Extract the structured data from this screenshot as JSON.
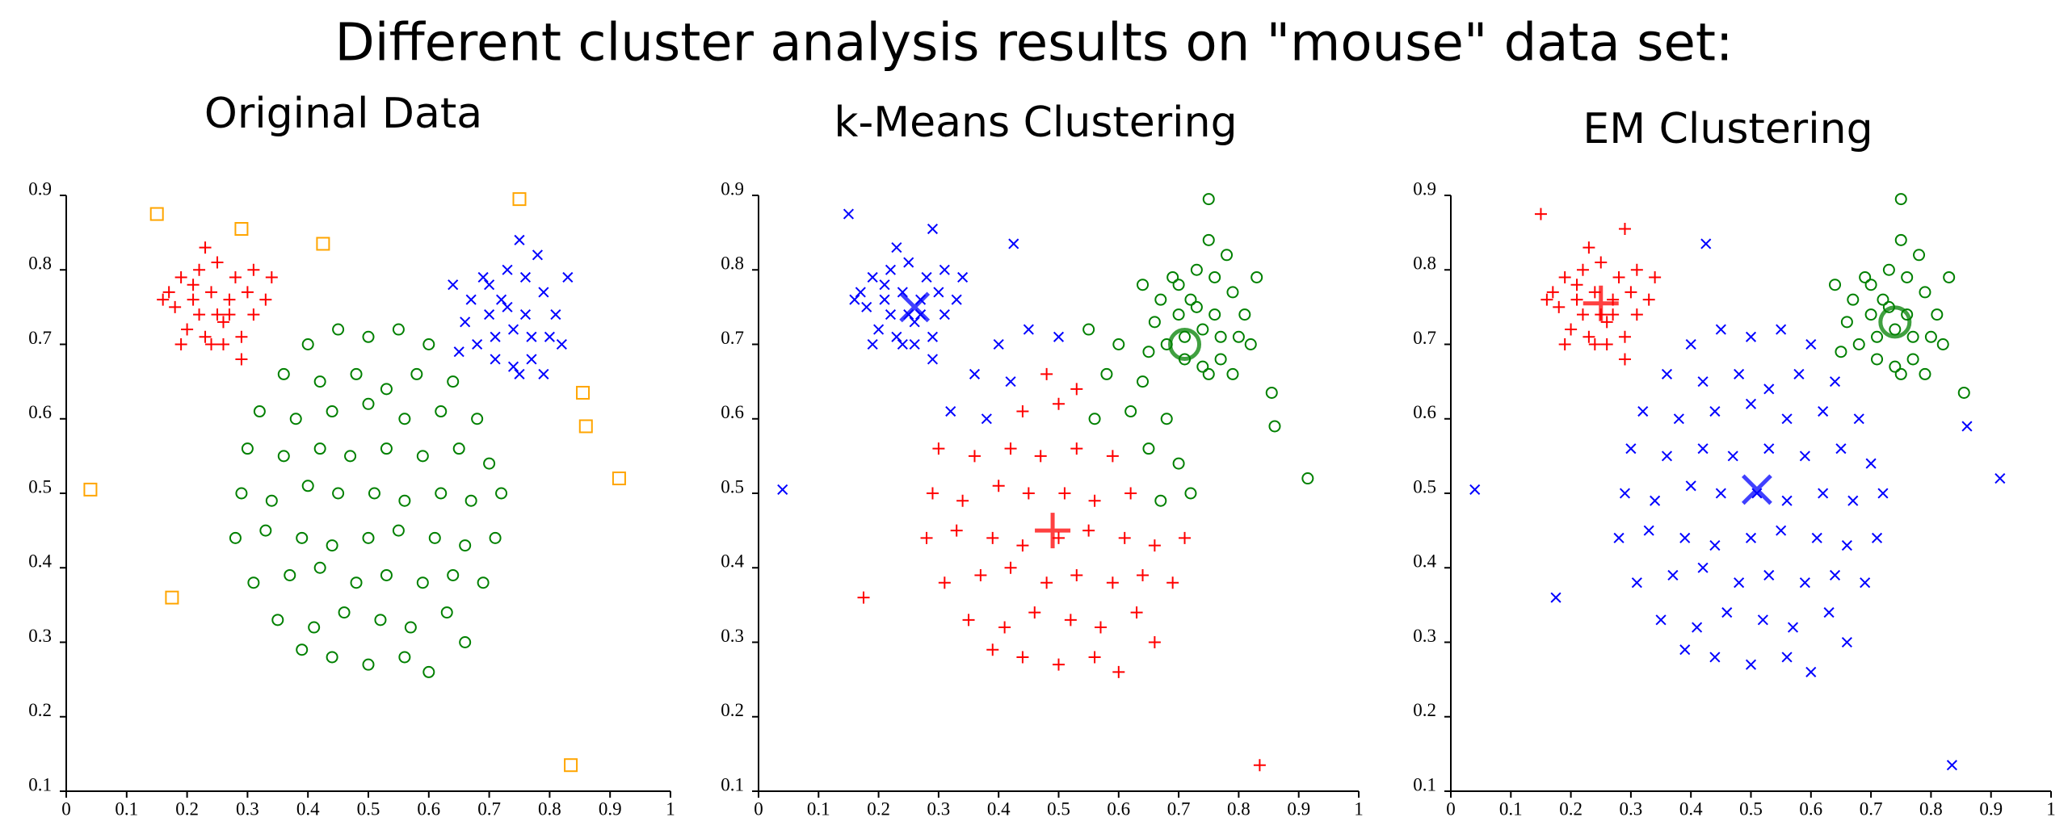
{
  "title": "Different cluster analysis results on \"mouse\" data set:",
  "chart_data": [
    {
      "type": "scatter",
      "title": "Original Data",
      "xlim": [
        0,
        1
      ],
      "ylim": [
        0.1,
        0.9
      ],
      "xticks": [
        0,
        0.1,
        0.2,
        0.3,
        0.4,
        0.5,
        0.6,
        0.7,
        0.8,
        0.9,
        1
      ],
      "yticks": [
        0.1,
        0.2,
        0.3,
        0.4,
        0.5,
        0.6,
        0.7,
        0.8,
        0.9
      ],
      "series": [
        {
          "color": "#ff0000",
          "marker": "+",
          "x": [
            0.19,
            0.22,
            0.25,
            0.28,
            0.3,
            0.31,
            0.29,
            0.26,
            0.23,
            0.2,
            0.18,
            0.21,
            0.24,
            0.27,
            0.25,
            0.22,
            0.17,
            0.33,
            0.26,
            0.29,
            0.19,
            0.23,
            0.31,
            0.16,
            0.27,
            0.24,
            0.21,
            0.34
          ],
          "values": [
            0.79,
            0.8,
            0.81,
            0.79,
            0.77,
            0.74,
            0.71,
            0.7,
            0.71,
            0.72,
            0.75,
            0.76,
            0.77,
            0.76,
            0.74,
            0.74,
            0.77,
            0.76,
            0.73,
            0.68,
            0.7,
            0.83,
            0.8,
            0.76,
            0.74,
            0.7,
            0.78,
            0.79
          ]
        },
        {
          "color": "#0000ff",
          "marker": "x",
          "x": [
            0.67,
            0.7,
            0.73,
            0.76,
            0.79,
            0.81,
            0.8,
            0.77,
            0.74,
            0.71,
            0.68,
            0.66,
            0.7,
            0.73,
            0.76,
            0.74,
            0.71,
            0.78,
            0.83,
            0.65,
            0.75,
            0.79,
            0.72,
            0.82,
            0.69,
            0.77,
            0.75,
            0.64
          ],
          "values": [
            0.76,
            0.78,
            0.8,
            0.79,
            0.77,
            0.74,
            0.71,
            0.68,
            0.67,
            0.68,
            0.7,
            0.73,
            0.74,
            0.75,
            0.74,
            0.72,
            0.71,
            0.82,
            0.79,
            0.69,
            0.66,
            0.66,
            0.76,
            0.7,
            0.79,
            0.71,
            0.84,
            0.78
          ]
        },
        {
          "color": "#008000",
          "marker": "o",
          "x": [
            0.4,
            0.45,
            0.5,
            0.55,
            0.6,
            0.36,
            0.42,
            0.48,
            0.53,
            0.58,
            0.64,
            0.32,
            0.38,
            0.44,
            0.5,
            0.56,
            0.62,
            0.68,
            0.3,
            0.36,
            0.42,
            0.47,
            0.53,
            0.59,
            0.65,
            0.7,
            0.29,
            0.34,
            0.4,
            0.45,
            0.51,
            0.56,
            0.62,
            0.67,
            0.72,
            0.28,
            0.33,
            0.39,
            0.44,
            0.5,
            0.55,
            0.61,
            0.66,
            0.71,
            0.31,
            0.37,
            0.42,
            0.48,
            0.53,
            0.59,
            0.64,
            0.69,
            0.35,
            0.41,
            0.46,
            0.52,
            0.57,
            0.63,
            0.44,
            0.5,
            0.56,
            0.6,
            0.39,
            0.66
          ],
          "values": [
            0.7,
            0.72,
            0.71,
            0.72,
            0.7,
            0.66,
            0.65,
            0.66,
            0.64,
            0.66,
            0.65,
            0.61,
            0.6,
            0.61,
            0.62,
            0.6,
            0.61,
            0.6,
            0.56,
            0.55,
            0.56,
            0.55,
            0.56,
            0.55,
            0.56,
            0.54,
            0.5,
            0.49,
            0.51,
            0.5,
            0.5,
            0.49,
            0.5,
            0.49,
            0.5,
            0.44,
            0.45,
            0.44,
            0.43,
            0.44,
            0.45,
            0.44,
            0.43,
            0.44,
            0.38,
            0.39,
            0.4,
            0.38,
            0.39,
            0.38,
            0.39,
            0.38,
            0.33,
            0.32,
            0.34,
            0.33,
            0.32,
            0.34,
            0.28,
            0.27,
            0.28,
            0.26,
            0.29,
            0.3
          ]
        },
        {
          "color": "#ffa500",
          "marker": "square",
          "x": [
            0.04,
            0.15,
            0.175,
            0.29,
            0.425,
            0.75,
            0.855,
            0.86,
            0.915,
            0.835
          ],
          "values": [
            0.505,
            0.875,
            0.36,
            0.855,
            0.835,
            0.895,
            0.635,
            0.59,
            0.52,
            0.135
          ]
        }
      ]
    },
    {
      "type": "scatter",
      "title": "k-Means Clustering",
      "xlim": [
        0,
        1
      ],
      "ylim": [
        0.1,
        0.9
      ],
      "xticks": [
        0,
        0.1,
        0.2,
        0.3,
        0.4,
        0.5,
        0.6,
        0.7,
        0.8,
        0.9,
        1
      ],
      "yticks": [
        0.1,
        0.2,
        0.3,
        0.4,
        0.5,
        0.6,
        0.7,
        0.8,
        0.9
      ],
      "series": [
        {
          "color": "#0000ff",
          "marker": "x",
          "center": {
            "x": 0.26,
            "y": 0.75
          },
          "x": [
            0.19,
            0.22,
            0.25,
            0.28,
            0.3,
            0.31,
            0.29,
            0.26,
            0.23,
            0.2,
            0.18,
            0.21,
            0.24,
            0.27,
            0.25,
            0.22,
            0.17,
            0.33,
            0.26,
            0.29,
            0.19,
            0.23,
            0.31,
            0.16,
            0.27,
            0.24,
            0.21,
            0.34,
            0.4,
            0.45,
            0.5,
            0.36,
            0.42,
            0.32,
            0.38,
            0.04,
            0.15,
            0.29,
            0.425
          ],
          "values": [
            0.79,
            0.8,
            0.81,
            0.79,
            0.77,
            0.74,
            0.71,
            0.7,
            0.71,
            0.72,
            0.75,
            0.76,
            0.77,
            0.76,
            0.74,
            0.74,
            0.77,
            0.76,
            0.73,
            0.68,
            0.7,
            0.83,
            0.8,
            0.76,
            0.74,
            0.7,
            0.78,
            0.79,
            0.7,
            0.72,
            0.71,
            0.66,
            0.65,
            0.61,
            0.6,
            0.505,
            0.875,
            0.855,
            0.835
          ]
        },
        {
          "color": "#008000",
          "marker": "o",
          "center": {
            "x": 0.71,
            "y": 0.7
          },
          "x": [
            0.67,
            0.7,
            0.73,
            0.76,
            0.79,
            0.81,
            0.8,
            0.77,
            0.74,
            0.71,
            0.68,
            0.66,
            0.7,
            0.73,
            0.76,
            0.74,
            0.71,
            0.78,
            0.83,
            0.65,
            0.75,
            0.79,
            0.72,
            0.82,
            0.69,
            0.77,
            0.75,
            0.64,
            0.55,
            0.6,
            0.58,
            0.64,
            0.56,
            0.62,
            0.68,
            0.65,
            0.7,
            0.72,
            0.67,
            0.75,
            0.855,
            0.86,
            0.915
          ],
          "values": [
            0.76,
            0.78,
            0.8,
            0.79,
            0.77,
            0.74,
            0.71,
            0.68,
            0.67,
            0.68,
            0.7,
            0.73,
            0.74,
            0.75,
            0.74,
            0.72,
            0.71,
            0.82,
            0.79,
            0.69,
            0.66,
            0.66,
            0.76,
            0.7,
            0.79,
            0.71,
            0.84,
            0.78,
            0.72,
            0.7,
            0.66,
            0.65,
            0.6,
            0.61,
            0.6,
            0.56,
            0.54,
            0.5,
            0.49,
            0.895,
            0.635,
            0.59,
            0.52
          ]
        },
        {
          "color": "#ff0000",
          "marker": "+",
          "center": {
            "x": 0.49,
            "y": 0.45
          },
          "x": [
            0.48,
            0.53,
            0.44,
            0.5,
            0.3,
            0.36,
            0.42,
            0.47,
            0.53,
            0.59,
            0.29,
            0.34,
            0.4,
            0.45,
            0.51,
            0.56,
            0.62,
            0.28,
            0.33,
            0.39,
            0.44,
            0.5,
            0.55,
            0.61,
            0.66,
            0.71,
            0.31,
            0.37,
            0.42,
            0.48,
            0.53,
            0.59,
            0.64,
            0.69,
            0.35,
            0.41,
            0.46,
            0.52,
            0.57,
            0.63,
            0.44,
            0.5,
            0.56,
            0.6,
            0.39,
            0.66,
            0.175,
            0.835
          ],
          "values": [
            0.66,
            0.64,
            0.61,
            0.62,
            0.56,
            0.55,
            0.56,
            0.55,
            0.56,
            0.55,
            0.5,
            0.49,
            0.51,
            0.5,
            0.5,
            0.49,
            0.5,
            0.44,
            0.45,
            0.44,
            0.43,
            0.44,
            0.45,
            0.44,
            0.43,
            0.44,
            0.38,
            0.39,
            0.4,
            0.38,
            0.39,
            0.38,
            0.39,
            0.38,
            0.33,
            0.32,
            0.34,
            0.33,
            0.32,
            0.34,
            0.28,
            0.27,
            0.28,
            0.26,
            0.29,
            0.3,
            0.36,
            0.135
          ]
        }
      ]
    },
    {
      "type": "scatter",
      "title": "EM Clustering",
      "xlim": [
        0,
        1
      ],
      "ylim": [
        0.1,
        0.9
      ],
      "xticks": [
        0,
        0.1,
        0.2,
        0.3,
        0.4,
        0.5,
        0.6,
        0.7,
        0.8,
        0.9,
        1
      ],
      "yticks": [
        0.1,
        0.2,
        0.3,
        0.4,
        0.5,
        0.6,
        0.7,
        0.8,
        0.9
      ],
      "series": [
        {
          "color": "#ff0000",
          "marker": "+",
          "center": {
            "x": 0.25,
            "y": 0.755
          },
          "x": [
            0.19,
            0.22,
            0.25,
            0.28,
            0.3,
            0.31,
            0.29,
            0.26,
            0.23,
            0.2,
            0.18,
            0.21,
            0.24,
            0.27,
            0.25,
            0.22,
            0.17,
            0.33,
            0.26,
            0.29,
            0.19,
            0.23,
            0.31,
            0.16,
            0.27,
            0.24,
            0.21,
            0.34,
            0.15,
            0.29
          ],
          "values": [
            0.79,
            0.8,
            0.81,
            0.79,
            0.77,
            0.74,
            0.71,
            0.7,
            0.71,
            0.72,
            0.75,
            0.76,
            0.77,
            0.76,
            0.74,
            0.74,
            0.77,
            0.76,
            0.73,
            0.68,
            0.7,
            0.83,
            0.8,
            0.76,
            0.74,
            0.7,
            0.78,
            0.79,
            0.875,
            0.855
          ]
        },
        {
          "color": "#008000",
          "marker": "o",
          "center": {
            "x": 0.74,
            "y": 0.73
          },
          "x": [
            0.67,
            0.7,
            0.73,
            0.76,
            0.79,
            0.81,
            0.8,
            0.77,
            0.74,
            0.71,
            0.68,
            0.66,
            0.7,
            0.73,
            0.76,
            0.74,
            0.71,
            0.78,
            0.83,
            0.65,
            0.75,
            0.79,
            0.72,
            0.82,
            0.69,
            0.77,
            0.75,
            0.64,
            0.75,
            0.855
          ],
          "values": [
            0.76,
            0.78,
            0.8,
            0.79,
            0.77,
            0.74,
            0.71,
            0.68,
            0.67,
            0.68,
            0.7,
            0.73,
            0.74,
            0.75,
            0.74,
            0.72,
            0.71,
            0.82,
            0.79,
            0.69,
            0.66,
            0.66,
            0.76,
            0.7,
            0.79,
            0.71,
            0.84,
            0.78,
            0.895,
            0.635
          ]
        },
        {
          "color": "#0000ff",
          "marker": "x",
          "center": {
            "x": 0.51,
            "y": 0.505
          },
          "x": [
            0.4,
            0.45,
            0.5,
            0.55,
            0.6,
            0.36,
            0.42,
            0.48,
            0.53,
            0.58,
            0.64,
            0.32,
            0.38,
            0.44,
            0.5,
            0.56,
            0.62,
            0.68,
            0.3,
            0.36,
            0.42,
            0.47,
            0.53,
            0.59,
            0.65,
            0.7,
            0.29,
            0.34,
            0.4,
            0.45,
            0.51,
            0.56,
            0.62,
            0.67,
            0.72,
            0.28,
            0.33,
            0.39,
            0.44,
            0.5,
            0.55,
            0.61,
            0.66,
            0.71,
            0.31,
            0.37,
            0.42,
            0.48,
            0.53,
            0.59,
            0.64,
            0.69,
            0.35,
            0.41,
            0.46,
            0.52,
            0.57,
            0.63,
            0.44,
            0.5,
            0.56,
            0.6,
            0.39,
            0.66,
            0.04,
            0.175,
            0.425,
            0.86,
            0.915,
            0.835
          ],
          "values": [
            0.7,
            0.72,
            0.71,
            0.72,
            0.7,
            0.66,
            0.65,
            0.66,
            0.64,
            0.66,
            0.65,
            0.61,
            0.6,
            0.61,
            0.62,
            0.6,
            0.61,
            0.6,
            0.56,
            0.55,
            0.56,
            0.55,
            0.56,
            0.55,
            0.56,
            0.54,
            0.5,
            0.49,
            0.51,
            0.5,
            0.5,
            0.49,
            0.5,
            0.49,
            0.5,
            0.44,
            0.45,
            0.44,
            0.43,
            0.44,
            0.45,
            0.44,
            0.43,
            0.44,
            0.38,
            0.39,
            0.4,
            0.38,
            0.39,
            0.38,
            0.39,
            0.38,
            0.33,
            0.32,
            0.34,
            0.33,
            0.32,
            0.34,
            0.28,
            0.27,
            0.28,
            0.26,
            0.29,
            0.3,
            0.505,
            0.36,
            0.835,
            0.59,
            0.52,
            0.135
          ]
        }
      ]
    }
  ]
}
